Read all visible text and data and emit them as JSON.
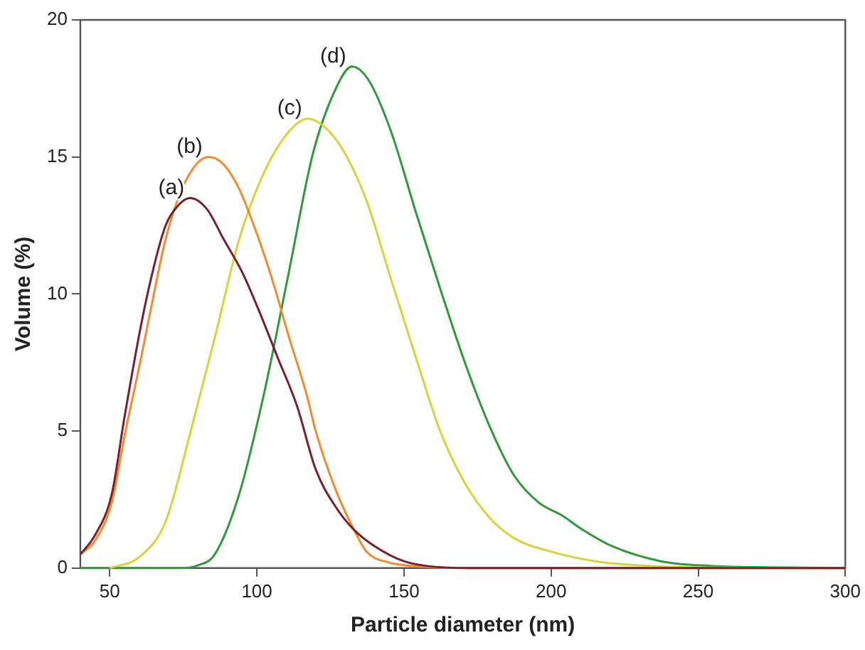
{
  "chart_data": {
    "type": "line",
    "xlabel": "Particle diameter (nm)",
    "ylabel": "Volume (%)",
    "xlim": [
      40,
      300
    ],
    "xticks": [
      50,
      100,
      150,
      200,
      250,
      300
    ],
    "ylim": [
      0,
      20
    ],
    "yticks": [
      0,
      5,
      10,
      15,
      20
    ],
    "grid": false,
    "legend": false,
    "marker": "none",
    "line_style": "solid",
    "series": [
      {
        "name": "(a)",
        "color": "#7a1f2b",
        "x": [
          40,
          45,
          50.7,
          55,
          60.7,
          65,
          69,
          73,
          77.3,
          83,
          88.7,
          95,
          100.3,
          107,
          113.7,
          120,
          127,
          133,
          140,
          150,
          160,
          175,
          300
        ],
        "values": [
          0.5,
          1.2,
          2.7,
          5.5,
          8.9,
          11,
          12.5,
          13.2,
          13.5,
          13.1,
          12,
          10.8,
          9.5,
          7.7,
          5.9,
          3.6,
          2.2,
          1.4,
          0.8,
          0.25,
          0.05,
          0,
          0
        ]
      },
      {
        "name": "(b)",
        "color": "#f58a2c",
        "x": [
          40,
          45,
          50.7,
          55,
          60.7,
          65,
          69,
          75.7,
          83.5,
          88,
          93.7,
          100,
          105.3,
          111,
          117,
          120,
          127,
          133,
          137.3,
          145,
          150.7,
          160,
          175,
          300
        ],
        "values": [
          0.5,
          1,
          2.4,
          4.8,
          7.7,
          10,
          12,
          14.1,
          15,
          14.8,
          13.9,
          12.2,
          10.5,
          8.4,
          6.3,
          5,
          2.8,
          1.4,
          0.6,
          0.2,
          0.1,
          0.03,
          0,
          0
        ]
      },
      {
        "name": "(c)",
        "color": "#d9d23a",
        "x": [
          50,
          60,
          69,
          77.3,
          85.7,
          94,
          102.3,
          110.7,
          117.3,
          123,
          129,
          137.3,
          145.7,
          154,
          162.3,
          170.7,
          179,
          187.3,
          200,
          215,
          230,
          250,
          300
        ],
        "values": [
          0,
          0.4,
          1.7,
          4.9,
          8.4,
          12,
          14.4,
          15.9,
          16.4,
          16.1,
          15.3,
          13.4,
          10.5,
          7.7,
          5,
          3.1,
          1.85,
          1.1,
          0.6,
          0.25,
          0.1,
          0.02,
          0
        ]
      },
      {
        "name": "(d)",
        "color": "#2e9a3a",
        "x": [
          40,
          75,
          80,
          85.7,
          94,
          102.3,
          110.7,
          119,
          127.3,
          132.3,
          138,
          145.7,
          154,
          162.3,
          170.7,
          179,
          187.3,
          195.7,
          204,
          210.7,
          220.7,
          237.3,
          254,
          280,
          300
        ],
        "values": [
          0,
          0,
          0.1,
          0.5,
          2.7,
          6.3,
          10.7,
          15.1,
          17.6,
          18.3,
          17.8,
          15.9,
          13,
          10.2,
          7.5,
          5.2,
          3.4,
          2.4,
          1.9,
          1.4,
          0.8,
          0.25,
          0.08,
          0.02,
          0
        ]
      }
    ]
  }
}
